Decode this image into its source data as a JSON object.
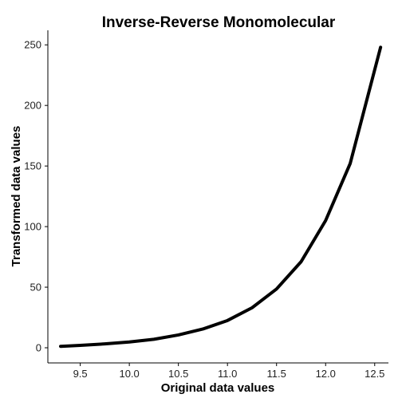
{
  "chart_data": {
    "type": "line",
    "title": "Inverse-Reverse Monomolecular",
    "xlabel": "Original data values",
    "ylabel": "Transformed data values",
    "xlim": [
      9.17,
      12.64
    ],
    "ylim": [
      -12.5,
      262
    ],
    "x_ticks": [
      9.5,
      10.0,
      10.5,
      11.0,
      11.5,
      12.0,
      12.5
    ],
    "x_tick_labels": [
      "9.5",
      "10.0",
      "10.5",
      "11.0",
      "11.5",
      "12.0",
      "12.5"
    ],
    "y_ticks": [
      0,
      50,
      100,
      150,
      200,
      250
    ],
    "y_tick_labels": [
      "0",
      "50",
      "100",
      "150",
      "200",
      "250"
    ],
    "grid": false,
    "series": [
      {
        "x": [
          9.3,
          9.5,
          9.75,
          10.0,
          10.25,
          10.5,
          10.75,
          11.0,
          11.25,
          11.5,
          11.75,
          12.0,
          12.25,
          12.56
        ],
        "y": [
          1.2,
          2.0,
          3.2,
          4.8,
          7.0,
          10.6,
          15.5,
          22.5,
          33.0,
          48.5,
          71.0,
          105.0,
          152.0,
          248.0
        ]
      }
    ]
  }
}
